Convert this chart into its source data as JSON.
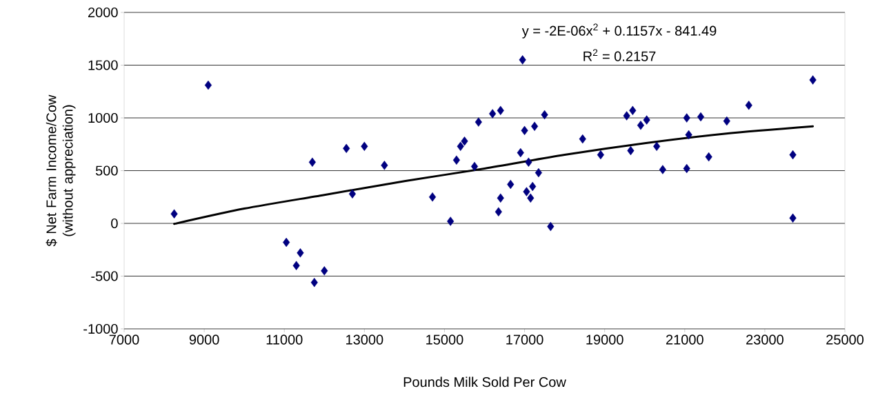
{
  "chart_data": {
    "type": "scatter",
    "xlabel": "Pounds Milk Sold Per Cow",
    "ylabel": "$ Net Farm Income/Cow (without appreciation)",
    "xlim": [
      7000,
      25000
    ],
    "xticks": [
      7000,
      9000,
      11000,
      13000,
      15000,
      17000,
      19000,
      21000,
      23000,
      25000
    ],
    "ylim": [
      -1000,
      2000
    ],
    "yticks": [
      -1000,
      -500,
      0,
      500,
      1000,
      1500,
      2000
    ],
    "grid": "y",
    "marker": "diamond",
    "annotations": [
      "y = -2E-06x$^{2}$ + 0.1157x - 841.49",
      "R$^{2}$ = 0.2157"
    ],
    "series": [
      {
        "color": "#000080",
        "x": [
          8250,
          9100,
          11050,
          11300,
          11400,
          11700,
          11750,
          12000,
          12550,
          12700,
          13000,
          13500,
          14700,
          15150,
          15300,
          15400,
          15500,
          15750,
          15850,
          16200,
          16400,
          16350,
          16400,
          16650,
          16900,
          16950,
          17000,
          17050,
          17100,
          17150,
          17200,
          17250,
          17350,
          17500,
          17650,
          18450,
          18900,
          19550,
          19700,
          19650,
          19900,
          20050,
          20300,
          20450,
          21050,
          21050,
          21100,
          21400,
          21600,
          22050,
          22600,
          23700,
          23700,
          24200
        ],
        "values": [
          90,
          1310,
          -180,
          -400,
          -280,
          580,
          -560,
          -450,
          710,
          280,
          730,
          550,
          250,
          20,
          600,
          730,
          780,
          540,
          960,
          1040,
          1070,
          110,
          240,
          370,
          670,
          1550,
          880,
          300,
          580,
          240,
          350,
          920,
          480,
          1030,
          -30,
          800,
          650,
          1020,
          1070,
          690,
          930,
          980,
          730,
          510,
          520,
          1000,
          840,
          1010,
          630,
          970,
          1120,
          650,
          50,
          1360
        ]
      },
      {
        "type": "line",
        "marker": "none",
        "color": "#000000",
        "x": [
          8250,
          10000,
          12000,
          14000,
          16000,
          18000,
          20000,
          22000,
          24200
        ],
        "values": [
          -5,
          140,
          270,
          400,
          520,
          650,
          760,
          850,
          920
        ]
      }
    ]
  }
}
